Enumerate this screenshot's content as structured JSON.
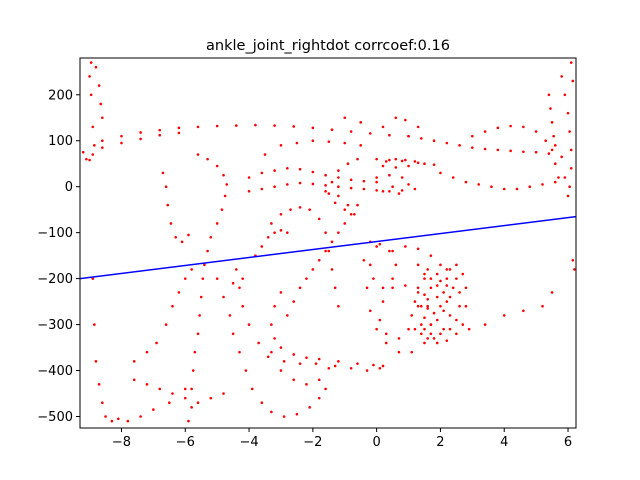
{
  "chart_data": {
    "type": "scatter",
    "title": "ankle_joint_rightdot corrcoef:0.16",
    "xlabel": "",
    "ylabel": "",
    "xlim": [
      -9.3,
      6.25
    ],
    "ylim": [
      -525,
      280
    ],
    "xticks": [
      -8,
      -6,
      -4,
      -2,
      0,
      2,
      4,
      6
    ],
    "yticks": [
      -500,
      -400,
      -300,
      -200,
      -100,
      0,
      100,
      200
    ],
    "grid": false,
    "colors": {
      "scatter": "#ff0000",
      "fit": "#0000ff"
    },
    "fit_line": {
      "x": [
        -9.3,
        6.25
      ],
      "y": [
        -200,
        -65
      ]
    },
    "scatter_points": [
      [
        -9.2,
        75
      ],
      [
        -9.1,
        60
      ],
      [
        -9.0,
        58
      ],
      [
        -8.9,
        70
      ],
      [
        -8.85,
        90
      ],
      [
        -8.9,
        130
      ],
      [
        -8.95,
        200
      ],
      [
        -9.0,
        240
      ],
      [
        -8.95,
        270
      ],
      [
        -8.8,
        260
      ],
      [
        -8.7,
        220
      ],
      [
        -8.65,
        180
      ],
      [
        -8.6,
        150
      ],
      [
        -8.9,
        -200
      ],
      [
        -8.85,
        -300
      ],
      [
        -8.8,
        -380
      ],
      [
        -8.7,
        -430
      ],
      [
        -8.6,
        -470
      ],
      [
        -8.5,
        -500
      ],
      [
        -8.3,
        -510
      ],
      [
        -8.1,
        -505
      ],
      [
        -7.8,
        -510
      ],
      [
        -7.4,
        -500
      ],
      [
        -7.0,
        -485
      ],
      [
        -6.5,
        -470
      ],
      [
        -6.0,
        -440
      ],
      [
        -8.6,
        100
      ],
      [
        -8.0,
        110
      ],
      [
        -7.4,
        118
      ],
      [
        -6.8,
        123
      ],
      [
        -6.2,
        128
      ],
      [
        -5.6,
        130
      ],
      [
        -5.0,
        132
      ],
      [
        -4.4,
        133
      ],
      [
        -3.8,
        134
      ],
      [
        -3.2,
        133
      ],
      [
        -2.6,
        131
      ],
      [
        -2.0,
        128
      ],
      [
        -1.4,
        124
      ],
      [
        -0.8,
        120
      ],
      [
        -0.2,
        116
      ],
      [
        0.4,
        112
      ],
      [
        1.0,
        110
      ],
      [
        -8.6,
        85
      ],
      [
        -8.0,
        95
      ],
      [
        -7.4,
        104
      ],
      [
        -6.8,
        112
      ],
      [
        -6.2,
        117
      ],
      [
        -5.6,
        70
      ],
      [
        -5.3,
        60
      ],
      [
        -5.0,
        45
      ],
      [
        -4.8,
        25
      ],
      [
        -4.7,
        5
      ],
      [
        -4.75,
        -20
      ],
      [
        -4.85,
        -50
      ],
      [
        -5.0,
        -80
      ],
      [
        -5.2,
        -110
      ],
      [
        -5.3,
        -140
      ],
      [
        -5.4,
        -170
      ],
      [
        -5.45,
        -200
      ],
      [
        -5.5,
        -240
      ],
      [
        -5.55,
        -280
      ],
      [
        -5.6,
        -320
      ],
      [
        -5.7,
        -360
      ],
      [
        -5.75,
        -400
      ],
      [
        -5.8,
        -440
      ],
      [
        -5.8,
        -480
      ],
      [
        -5.9,
        -510
      ],
      [
        -6.7,
        30
      ],
      [
        -6.6,
        0
      ],
      [
        -6.55,
        -40
      ],
      [
        -6.45,
        -80
      ],
      [
        -6.3,
        -110
      ],
      [
        -6.1,
        -120
      ],
      [
        -5.9,
        -105
      ],
      [
        -5.0,
        -200
      ],
      [
        -4.8,
        -240
      ],
      [
        -4.6,
        -280
      ],
      [
        -4.5,
        -320
      ],
      [
        -4.3,
        -360
      ],
      [
        -4.1,
        -400
      ],
      [
        -3.9,
        -440
      ],
      [
        -3.6,
        -470
      ],
      [
        -3.3,
        -490
      ],
      [
        -2.9,
        -500
      ],
      [
        -2.5,
        -495
      ],
      [
        -2.1,
        -480
      ],
      [
        -1.8,
        -460
      ],
      [
        -1.6,
        -440
      ],
      [
        -4.2,
        -260
      ],
      [
        -4.0,
        -300
      ],
      [
        -3.7,
        -340
      ],
      [
        -3.4,
        -370
      ],
      [
        -3.0,
        -400
      ],
      [
        -2.6,
        -420
      ],
      [
        -2.2,
        -430
      ],
      [
        -1.8,
        -420
      ],
      [
        -1.5,
        -395
      ],
      [
        -3.0,
        -230
      ],
      [
        -3.2,
        -260
      ],
      [
        -3.3,
        -300
      ],
      [
        -3.2,
        -330
      ],
      [
        -3.0,
        -350
      ],
      [
        -2.6,
        -365
      ],
      [
        -2.2,
        -372
      ],
      [
        -1.8,
        -375
      ],
      [
        -1.2,
        -380
      ],
      [
        -0.6,
        -385
      ],
      [
        -0.1,
        -388
      ],
      [
        0.2,
        -390
      ],
      [
        -3.3,
        -360
      ],
      [
        -2.9,
        -380
      ],
      [
        -2.4,
        -385
      ],
      [
        -1.9,
        -385
      ],
      [
        -1.3,
        -390
      ],
      [
        -0.8,
        -395
      ],
      [
        -0.3,
        -400
      ],
      [
        0.1,
        -395
      ],
      [
        -2.8,
        -280
      ],
      [
        -2.6,
        -250
      ],
      [
        -2.4,
        -220
      ],
      [
        -2.2,
        -200
      ],
      [
        -2.0,
        -180
      ],
      [
        -1.8,
        -160
      ],
      [
        -1.6,
        -140
      ],
      [
        -1.4,
        -120
      ],
      [
        -1.2,
        -100
      ],
      [
        -1.0,
        -80
      ],
      [
        -0.8,
        -60
      ],
      [
        -0.6,
        -40
      ],
      [
        -3.3,
        -80
      ],
      [
        -3.0,
        -60
      ],
      [
        -2.7,
        -50
      ],
      [
        -2.4,
        -45
      ],
      [
        -2.1,
        -50
      ],
      [
        -1.8,
        -70
      ],
      [
        -1.6,
        -100
      ],
      [
        -1.5,
        -140
      ],
      [
        -1.4,
        -180
      ],
      [
        -1.3,
        -220
      ],
      [
        -1.2,
        -260
      ],
      [
        -3.5,
        70
      ],
      [
        -3.0,
        90
      ],
      [
        -2.5,
        95
      ],
      [
        -2.0,
        100
      ],
      [
        -1.5,
        98
      ],
      [
        -1.0,
        95
      ],
      [
        -0.5,
        90
      ],
      [
        -4.0,
        20
      ],
      [
        -3.6,
        30
      ],
      [
        -3.2,
        35
      ],
      [
        -2.8,
        40
      ],
      [
        -2.4,
        38
      ],
      [
        -2.0,
        32
      ],
      [
        -1.6,
        25
      ],
      [
        -1.2,
        20
      ],
      [
        -0.8,
        15
      ],
      [
        -0.4,
        12
      ],
      [
        0.0,
        10
      ],
      [
        -4.0,
        -10
      ],
      [
        -3.6,
        -5
      ],
      [
        -3.2,
        0
      ],
      [
        -2.8,
        5
      ],
      [
        -2.4,
        8
      ],
      [
        -2.0,
        6
      ],
      [
        -1.6,
        3
      ],
      [
        -1.2,
        0
      ],
      [
        -0.8,
        -3
      ],
      [
        -0.4,
        -5
      ],
      [
        0.0,
        -8
      ],
      [
        0.4,
        -10
      ],
      [
        0.8,
        -8
      ],
      [
        1.2,
        -5
      ],
      [
        -1.6,
        -10
      ],
      [
        -1.2,
        -20
      ],
      [
        -0.9,
        -40
      ],
      [
        -0.7,
        -60
      ],
      [
        -1.0,
        -50
      ],
      [
        -1.3,
        -35
      ],
      [
        0.0,
        60
      ],
      [
        0.3,
        55
      ],
      [
        0.6,
        60
      ],
      [
        0.9,
        58
      ],
      [
        1.2,
        55
      ],
      [
        1.5,
        50
      ],
      [
        1.8,
        48
      ],
      [
        1.3,
        52
      ],
      [
        0.8,
        56
      ],
      [
        0.4,
        58
      ],
      [
        0.2,
        45
      ],
      [
        0.6,
        42
      ],
      [
        1.0,
        45
      ],
      [
        0.0,
        20
      ],
      [
        0.4,
        25
      ],
      [
        0.8,
        20
      ],
      [
        0.5,
        0
      ],
      [
        0.2,
        -10
      ],
      [
        0.7,
        -15
      ],
      [
        1.0,
        5
      ],
      [
        1.0,
        110
      ],
      [
        1.4,
        105
      ],
      [
        1.8,
        100
      ],
      [
        2.2,
        95
      ],
      [
        2.6,
        90
      ],
      [
        3.0,
        85
      ],
      [
        3.4,
        82
      ],
      [
        3.8,
        80
      ],
      [
        4.2,
        78
      ],
      [
        4.6,
        76
      ],
      [
        5.0,
        75
      ],
      [
        5.4,
        72
      ],
      [
        5.8,
        65
      ],
      [
        2.0,
        30
      ],
      [
        2.4,
        20
      ],
      [
        2.8,
        10
      ],
      [
        3.2,
        5
      ],
      [
        3.6,
        0
      ],
      [
        4.0,
        -5
      ],
      [
        4.4,
        -5
      ],
      [
        4.8,
        0
      ],
      [
        5.2,
        5
      ],
      [
        5.6,
        10
      ],
      [
        5.9,
        20
      ],
      [
        3.0,
        110
      ],
      [
        3.4,
        120
      ],
      [
        3.8,
        128
      ],
      [
        4.2,
        132
      ],
      [
        4.6,
        130
      ],
      [
        5.0,
        120
      ],
      [
        5.3,
        100
      ],
      [
        5.5,
        80
      ],
      [
        5.6,
        50
      ],
      [
        5.7,
        20
      ],
      [
        5.8,
        240
      ],
      [
        5.9,
        200
      ],
      [
        6.0,
        160
      ],
      [
        6.05,
        120
      ],
      [
        6.1,
        80
      ],
      [
        6.1,
        40
      ],
      [
        6.05,
        0
      ],
      [
        6.0,
        -20
      ],
      [
        6.1,
        270
      ],
      [
        6.15,
        230
      ],
      [
        5.4,
        200
      ],
      [
        5.45,
        170
      ],
      [
        5.5,
        140
      ],
      [
        5.55,
        110
      ],
      [
        5.6,
        90
      ],
      [
        6.15,
        -160
      ],
      [
        6.2,
        -180
      ],
      [
        5.5,
        -230
      ],
      [
        5.2,
        -260
      ],
      [
        4.6,
        -270
      ],
      [
        4.0,
        -280
      ],
      [
        3.4,
        -300
      ],
      [
        2.9,
        -310
      ],
      [
        -0.6,
        60
      ],
      [
        -0.9,
        50
      ],
      [
        -1.2,
        35
      ],
      [
        -1.4,
        10
      ],
      [
        -1.5,
        -15
      ],
      [
        -1.0,
        150
      ],
      [
        -0.5,
        140
      ],
      [
        0.2,
        130
      ],
      [
        0.6,
        150
      ],
      [
        0.9,
        145
      ],
      [
        1.3,
        130
      ],
      [
        -0.2,
        -120
      ],
      [
        -0.4,
        -160
      ],
      [
        -0.1,
        -200
      ],
      [
        0.2,
        -220
      ],
      [
        0.5,
        -200
      ],
      [
        0.6,
        -170
      ],
      [
        0.4,
        -140
      ],
      [
        0.1,
        -125
      ],
      [
        0.0,
        -130
      ],
      [
        -0.2,
        -170
      ],
      [
        -0.3,
        -220
      ],
      [
        -0.2,
        -270
      ],
      [
        0.0,
        -310
      ],
      [
        0.3,
        -340
      ],
      [
        0.7,
        -360
      ],
      [
        1.1,
        -360
      ],
      [
        1.5,
        -340
      ],
      [
        1.7,
        -300
      ],
      [
        1.6,
        -260
      ],
      [
        1.3,
        -230
      ],
      [
        0.9,
        -215
      ],
      [
        0.5,
        -220
      ],
      [
        0.2,
        -250
      ],
      [
        0.1,
        -290
      ],
      [
        0.3,
        -320
      ],
      [
        0.7,
        -330
      ],
      [
        1.0,
        -310
      ],
      [
        0.5,
        -140
      ],
      [
        0.9,
        -130
      ],
      [
        1.3,
        -135
      ],
      [
        1.7,
        -150
      ],
      [
        2.0,
        -170
      ],
      [
        2.2,
        -200
      ],
      [
        2.3,
        -240
      ],
      [
        2.3,
        -280
      ],
      [
        2.1,
        -310
      ],
      [
        1.8,
        -330
      ],
      [
        1.3,
        -170
      ],
      [
        1.6,
        -180
      ],
      [
        1.9,
        -190
      ],
      [
        2.2,
        -180
      ],
      [
        2.5,
        -170
      ],
      [
        2.7,
        -190
      ],
      [
        2.8,
        -220
      ],
      [
        2.8,
        -260
      ],
      [
        2.7,
        -300
      ],
      [
        2.5,
        -320
      ],
      [
        2.2,
        -335
      ],
      [
        1.9,
        -340
      ],
      [
        1.6,
        -330
      ],
      [
        1.4,
        -300
      ],
      [
        1.3,
        -260
      ],
      [
        1.3,
        -220
      ],
      [
        1.5,
        -200
      ],
      [
        1.5,
        -190
      ],
      [
        1.7,
        -200
      ],
      [
        1.9,
        -215
      ],
      [
        2.1,
        -230
      ],
      [
        2.2,
        -250
      ],
      [
        2.1,
        -270
      ],
      [
        1.9,
        -290
      ],
      [
        1.7,
        -300
      ],
      [
        1.5,
        -285
      ],
      [
        1.4,
        -260
      ],
      [
        1.5,
        -235
      ],
      [
        1.7,
        -220
      ],
      [
        1.9,
        -240
      ],
      [
        2.0,
        -260
      ],
      [
        1.8,
        -275
      ],
      [
        1.6,
        -265
      ],
      [
        1.6,
        -245
      ],
      [
        2.3,
        -180
      ],
      [
        2.5,
        -200
      ],
      [
        2.6,
        -230
      ],
      [
        2.6,
        -260
      ],
      [
        2.5,
        -290
      ],
      [
        2.3,
        -310
      ],
      [
        2.0,
        -320
      ],
      [
        1.7,
        -320
      ],
      [
        1.5,
        -310
      ],
      [
        1.2,
        -250
      ],
      [
        1.1,
        -280
      ],
      [
        1.2,
        -310
      ],
      [
        1.4,
        -320
      ],
      [
        2.4,
        -220
      ],
      [
        2.2,
        -215
      ],
      [
        2.0,
        -205
      ],
      [
        -3.8,
        -150
      ],
      [
        -3.6,
        -130
      ],
      [
        -3.4,
        -110
      ],
      [
        -3.2,
        -100
      ],
      [
        -3.0,
        -95
      ],
      [
        -2.8,
        -100
      ],
      [
        -4.4,
        -180
      ],
      [
        -4.2,
        -200
      ],
      [
        -4.3,
        -220
      ],
      [
        -4.5,
        -210
      ],
      [
        -7.6,
        -380
      ],
      [
        -7.2,
        -360
      ],
      [
        -6.9,
        -340
      ],
      [
        -6.6,
        -300
      ],
      [
        -6.4,
        -260
      ],
      [
        -6.2,
        -230
      ],
      [
        -6.0,
        -200
      ],
      [
        -5.8,
        -180
      ],
      [
        -7.6,
        -420
      ],
      [
        -7.2,
        -430
      ],
      [
        -6.8,
        -440
      ],
      [
        -6.4,
        -450
      ],
      [
        -6.0,
        -460
      ],
      [
        -5.6,
        -470
      ],
      [
        -5.2,
        -460
      ],
      [
        -4.8,
        -450
      ]
    ]
  }
}
